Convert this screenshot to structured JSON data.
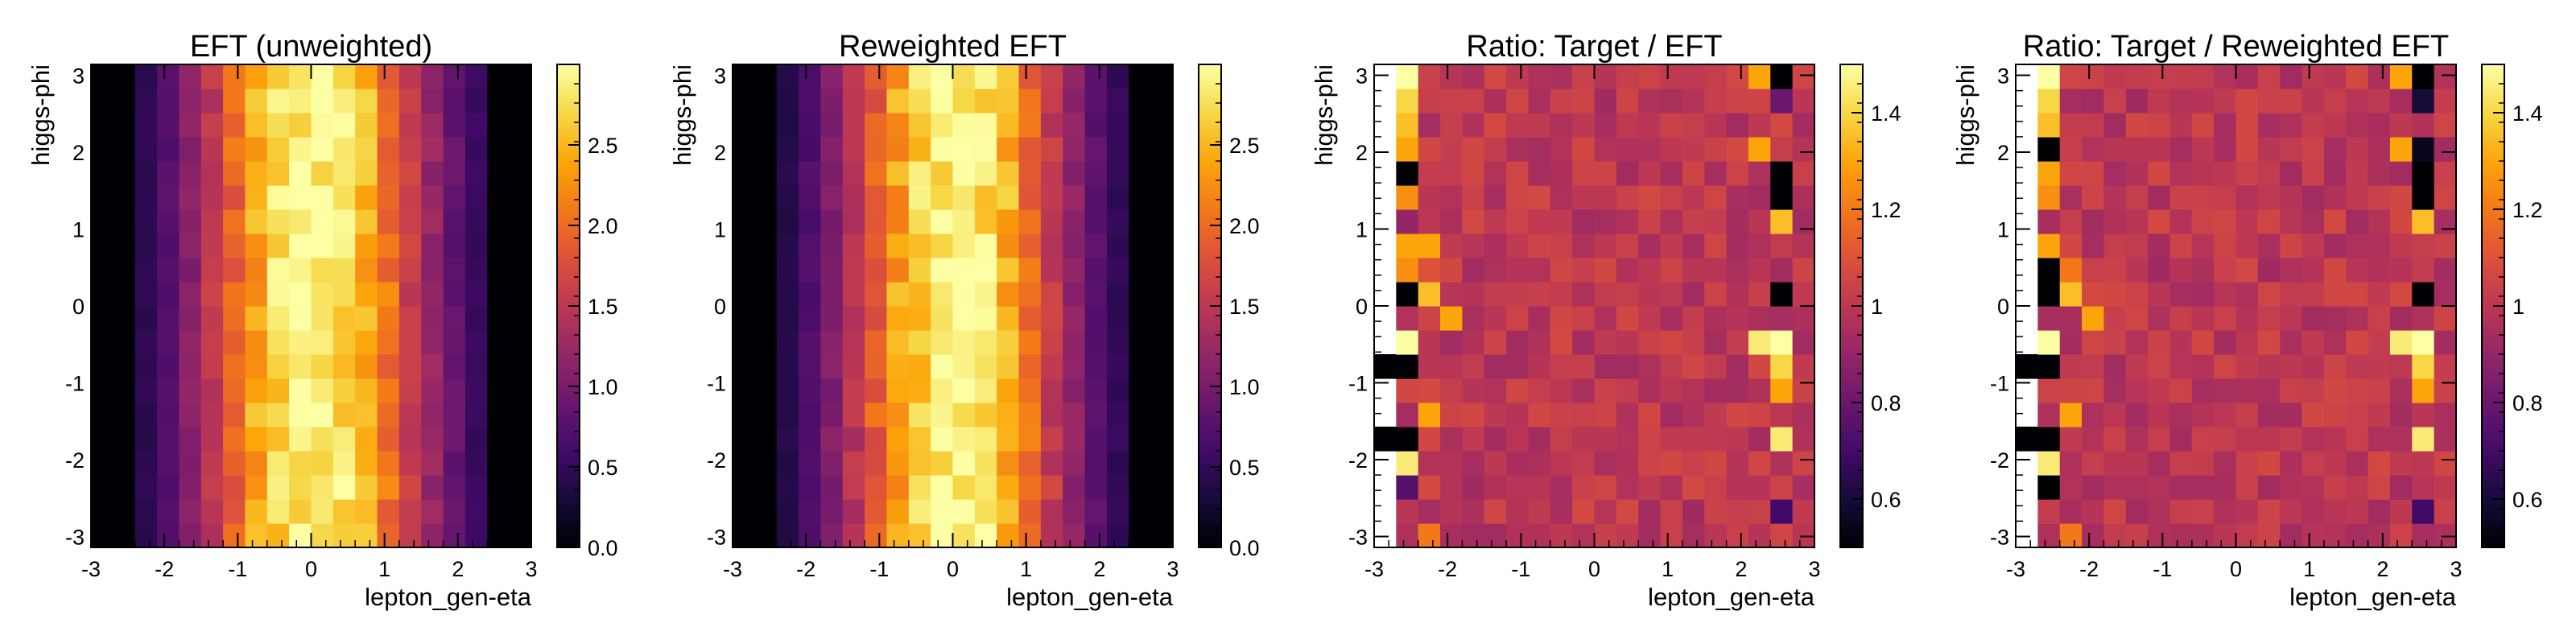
{
  "chart_data": [
    {
      "type": "heatmap",
      "title": "EFT (unweighted)",
      "xlabel": "lepton_gen-eta",
      "ylabel": "higgs-phi",
      "xlim": [
        -3,
        3
      ],
      "ylim": [
        -3.1416,
        3.1416
      ],
      "zlim": [
        0,
        3.0
      ],
      "x_ticks": [
        -3,
        -2,
        -1,
        0,
        1,
        2,
        3
      ],
      "y_ticks": [
        -3,
        -2,
        -1,
        0,
        1,
        2,
        3
      ],
      "z_ticks": [
        0.0,
        0.5,
        1.0,
        1.5,
        2.0,
        2.5
      ],
      "z_tick_labels": [
        "0.0",
        "0.5",
        "1.0",
        "1.5",
        "2.0",
        "2.5"
      ],
      "colormap": "inferno",
      "grid": false,
      "bins_x": 20,
      "bins_y": 20,
      "column_profile": [
        0.0,
        0.0,
        0.45,
        0.75,
        1.1,
        1.5,
        1.95,
        2.4,
        2.7,
        2.9,
        2.95,
        2.8,
        2.5,
        2.05,
        1.6,
        1.2,
        0.85,
        0.55,
        0.0,
        0.0
      ],
      "seed": 11,
      "noise": 0.1,
      "outliers": []
    },
    {
      "type": "heatmap",
      "title": "Reweighted EFT",
      "xlabel": "lepton_gen-eta",
      "ylabel": "higgs-phi",
      "xlim": [
        -3,
        3
      ],
      "ylim": [
        -3.1416,
        3.1416
      ],
      "zlim": [
        0,
        3.0
      ],
      "x_ticks": [
        -3,
        -2,
        -1,
        0,
        1,
        2,
        3
      ],
      "y_ticks": [
        -3,
        -2,
        -1,
        0,
        1,
        2,
        3
      ],
      "z_ticks": [
        0.0,
        0.5,
        1.0,
        1.5,
        2.0,
        2.5
      ],
      "z_tick_labels": [
        "0.0",
        "0.5",
        "1.0",
        "1.5",
        "2.0",
        "2.5"
      ],
      "colormap": "inferno",
      "grid": false,
      "bins_x": 20,
      "bins_y": 20,
      "column_profile": [
        0.0,
        0.0,
        0.4,
        0.7,
        1.05,
        1.45,
        1.9,
        2.35,
        2.7,
        2.9,
        2.95,
        2.8,
        2.45,
        2.0,
        1.55,
        1.15,
        0.8,
        0.5,
        0.0,
        0.0
      ],
      "seed": 23,
      "noise": 0.1,
      "outliers": []
    },
    {
      "type": "heatmap",
      "title": "Ratio: Target / EFT",
      "xlabel": "lepton_gen-eta",
      "ylabel": "higgs-phi",
      "xlim": [
        -3,
        3
      ],
      "ylim": [
        -3.1416,
        3.1416
      ],
      "zlim": [
        0.5,
        1.5
      ],
      "x_ticks": [
        -3,
        -2,
        -1,
        0,
        1,
        2,
        3
      ],
      "y_ticks": [
        -3,
        -2,
        -1,
        0,
        1,
        2,
        3
      ],
      "z_ticks": [
        0.6,
        0.8,
        1.0,
        1.2,
        1.4
      ],
      "z_tick_labels": [
        "0.6",
        "0.8",
        "1",
        "1.2",
        "1.4"
      ],
      "colormap": "inferno",
      "grid": false,
      "bins_x": 20,
      "bins_y": 20,
      "base": 1.0,
      "seed": 37,
      "noise": 0.07,
      "columns_from": 1,
      "columns_to": 19,
      "outliers": [
        [
          1,
          19,
          1.5
        ],
        [
          18,
          19,
          0.5
        ],
        [
          17,
          19,
          1.3
        ],
        [
          1,
          18,
          1.4
        ],
        [
          18,
          18,
          0.8
        ],
        [
          1,
          17,
          1.35
        ],
        [
          1,
          16,
          1.3
        ],
        [
          17,
          16,
          1.3
        ],
        [
          1,
          15,
          0.5
        ],
        [
          18,
          15,
          0.5
        ],
        [
          1,
          14,
          1.25
        ],
        [
          18,
          14,
          0.5
        ],
        [
          1,
          13,
          0.9
        ],
        [
          18,
          13,
          1.35
        ],
        [
          1,
          12,
          1.3
        ],
        [
          2,
          12,
          1.3
        ],
        [
          1,
          11,
          1.25
        ],
        [
          2,
          11,
          1.1
        ],
        [
          1,
          10,
          0.5
        ],
        [
          2,
          10,
          1.35
        ],
        [
          18,
          10,
          0.5
        ],
        [
          3,
          9,
          1.3
        ],
        [
          1,
          8,
          1.5
        ],
        [
          17,
          8,
          1.45
        ],
        [
          18,
          8,
          1.5
        ],
        [
          0,
          7,
          0.5
        ],
        [
          1,
          7,
          0.5
        ],
        [
          18,
          7,
          1.4
        ],
        [
          18,
          6,
          1.3
        ],
        [
          2,
          5,
          1.3
        ],
        [
          0,
          4,
          0.5
        ],
        [
          1,
          4,
          0.5
        ],
        [
          1,
          3,
          1.45
        ],
        [
          18,
          4,
          1.45
        ],
        [
          1,
          2,
          0.75
        ],
        [
          18,
          1,
          0.7
        ],
        [
          2,
          0,
          1.2
        ]
      ]
    },
    {
      "type": "heatmap",
      "title": "Ratio: Target / Reweighted EFT",
      "xlabel": "lepton_gen-eta",
      "ylabel": "higgs-phi",
      "xlim": [
        -3,
        3
      ],
      "ylim": [
        -3.1416,
        3.1416
      ],
      "zlim": [
        0.5,
        1.5
      ],
      "x_ticks": [
        -3,
        -2,
        -1,
        0,
        1,
        2,
        3
      ],
      "y_ticks": [
        -3,
        -2,
        -1,
        0,
        1,
        2,
        3
      ],
      "z_ticks": [
        0.6,
        0.8,
        1.0,
        1.2,
        1.4
      ],
      "z_tick_labels": [
        "0.6",
        "0.8",
        "1",
        "1.2",
        "1.4"
      ],
      "colormap": "inferno",
      "grid": false,
      "bins_x": 20,
      "bins_y": 20,
      "base": 1.0,
      "seed": 53,
      "noise": 0.07,
      "columns_from": 1,
      "columns_to": 19,
      "outliers": [
        [
          1,
          19,
          1.5
        ],
        [
          18,
          19,
          0.5
        ],
        [
          17,
          19,
          1.3
        ],
        [
          1,
          18,
          1.4
        ],
        [
          18,
          18,
          0.6
        ],
        [
          1,
          17,
          1.35
        ],
        [
          1,
          16,
          0.5
        ],
        [
          17,
          16,
          1.3
        ],
        [
          18,
          16,
          0.55
        ],
        [
          1,
          15,
          1.3
        ],
        [
          18,
          15,
          0.5
        ],
        [
          1,
          14,
          1.25
        ],
        [
          18,
          14,
          0.5
        ],
        [
          18,
          13,
          1.35
        ],
        [
          1,
          12,
          1.3
        ],
        [
          1,
          11,
          0.5
        ],
        [
          2,
          11,
          1.2
        ],
        [
          1,
          10,
          0.5
        ],
        [
          2,
          10,
          1.35
        ],
        [
          18,
          10,
          0.5
        ],
        [
          3,
          9,
          1.3
        ],
        [
          1,
          8,
          1.5
        ],
        [
          17,
          8,
          1.45
        ],
        [
          18,
          8,
          1.5
        ],
        [
          0,
          7,
          0.5
        ],
        [
          1,
          7,
          0.5
        ],
        [
          18,
          7,
          1.4
        ],
        [
          18,
          6,
          1.3
        ],
        [
          2,
          5,
          1.3
        ],
        [
          0,
          4,
          0.5
        ],
        [
          1,
          4,
          0.5
        ],
        [
          1,
          3,
          1.45
        ],
        [
          18,
          4,
          1.45
        ],
        [
          1,
          2,
          0.5
        ],
        [
          18,
          1,
          0.7
        ],
        [
          2,
          0,
          1.2
        ]
      ]
    }
  ]
}
